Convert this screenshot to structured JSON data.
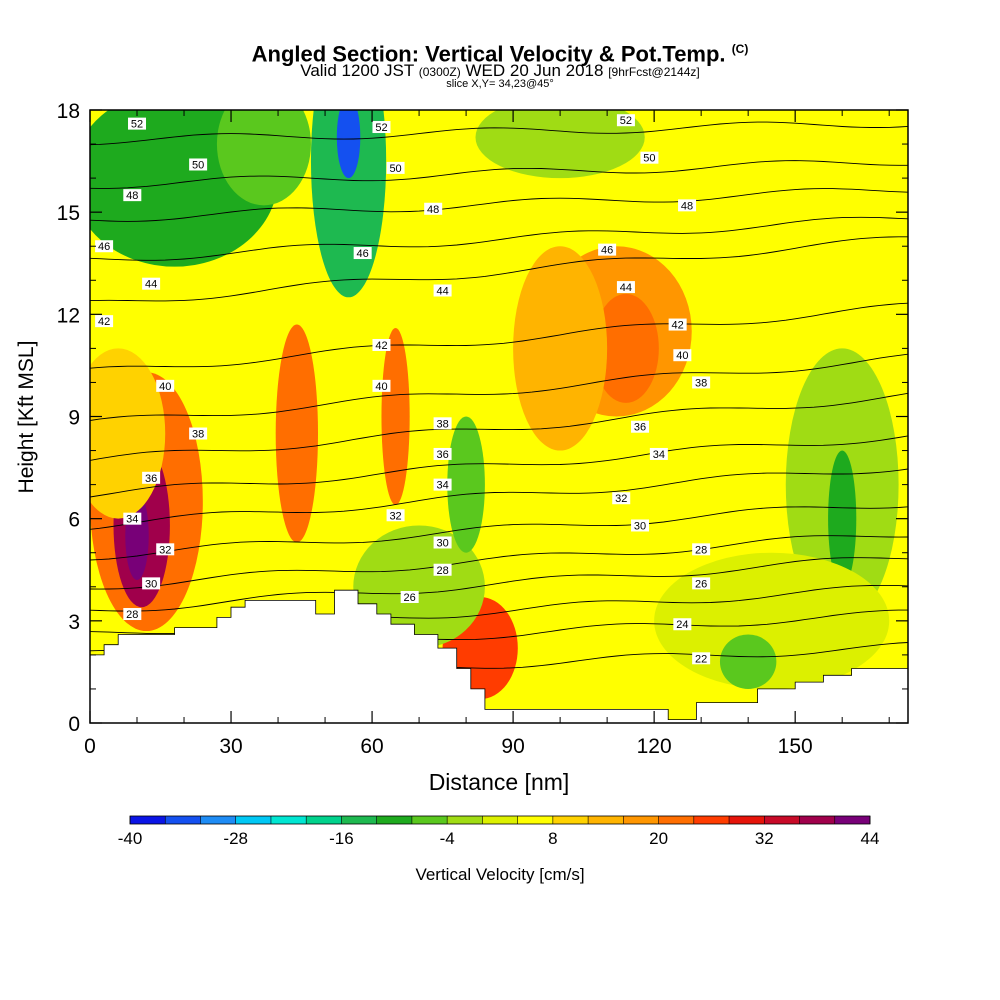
{
  "title": "Angled Section: Vertical Velocity & Pot.Temp.",
  "title_units": "(C)",
  "subtitle": {
    "valid": "Valid 1200 JST",
    "utc": "(0300Z)",
    "date": "WED 20 Jun 2018",
    "forecast": "[9hrFcst@2144z]"
  },
  "slice_label": "slice X,Y= 34,23@45°",
  "colorbar": {
    "label": "Vertical Velocity [cm/s]",
    "tick_labels": [
      "-40",
      "-28",
      "-16",
      "-4",
      "8",
      "20",
      "32",
      "44"
    ],
    "levels": [
      -40,
      -36,
      -32,
      -28,
      -24,
      -20,
      -16,
      -12,
      -8,
      -4,
      0,
      4,
      8,
      12,
      16,
      20,
      24,
      28,
      32,
      36,
      40,
      44
    ],
    "colors": [
      "#0a14e6",
      "#1450f0",
      "#1e8cf5",
      "#00c8f5",
      "#00e6d2",
      "#00d28c",
      "#1eb950",
      "#1eaa1e",
      "#5ac81e",
      "#a0dc14",
      "#dcf000",
      "#ffff00",
      "#ffd200",
      "#ffb400",
      "#ff9600",
      "#ff6e00",
      "#ff3c00",
      "#e6140a",
      "#c80a28",
      "#a0004b",
      "#780078"
    ]
  },
  "chart_data": {
    "type": "heatmap",
    "title": "Angled Section: Vertical Velocity & Pot.Temp.",
    "xlabel": "Distance [nm]",
    "ylabel": "Height [Kft MSL]",
    "xlim": [
      0,
      174
    ],
    "ylim": [
      0,
      18
    ],
    "x_ticks": [
      "0",
      "30",
      "60",
      "90",
      "120",
      "150"
    ],
    "x_tick_values": [
      0,
      30,
      60,
      90,
      120,
      150
    ],
    "y_ticks": [
      "0",
      "3",
      "6",
      "9",
      "12",
      "15",
      "18"
    ],
    "y_tick_values": [
      0,
      3,
      6,
      9,
      12,
      15,
      18
    ],
    "background_level": 4,
    "velocity_features": [
      {
        "x": 12,
        "y": 6.5,
        "rx": 12,
        "ry": 3.8,
        "value": 22
      },
      {
        "x": 11,
        "y": 5.8,
        "rx": 6,
        "ry": 2.4,
        "value": 36
      },
      {
        "x": 10,
        "y": 5.5,
        "rx": 2.5,
        "ry": 1.3,
        "value": 44
      },
      {
        "x": 6,
        "y": 8.5,
        "rx": 10,
        "ry": 2.5,
        "value": 10
      },
      {
        "x": 44,
        "y": 8.5,
        "rx": 4.5,
        "ry": 3.2,
        "value": 20
      },
      {
        "x": 65,
        "y": 9,
        "rx": 3,
        "ry": 2.6,
        "value": 22
      },
      {
        "x": 83,
        "y": 2.2,
        "rx": 8,
        "ry": 1.5,
        "value": 26
      },
      {
        "x": 112,
        "y": 11.5,
        "rx": 16,
        "ry": 2.5,
        "value": 16
      },
      {
        "x": 114,
        "y": 11,
        "rx": 7,
        "ry": 1.6,
        "value": 22
      },
      {
        "x": 100,
        "y": 11,
        "rx": 10,
        "ry": 3,
        "value": 12
      },
      {
        "x": 18,
        "y": 16,
        "rx": 22,
        "ry": 2.6,
        "value": -10
      },
      {
        "x": 55,
        "y": 16.5,
        "rx": 8,
        "ry": 4,
        "value": -14
      },
      {
        "x": 55,
        "y": 17.2,
        "rx": 2.5,
        "ry": 1.2,
        "value": -34
      },
      {
        "x": 37,
        "y": 17,
        "rx": 10,
        "ry": 1.8,
        "value": -8
      },
      {
        "x": 100,
        "y": 17.2,
        "rx": 18,
        "ry": 1.2,
        "value": -2
      },
      {
        "x": 160,
        "y": 7,
        "rx": 12,
        "ry": 4,
        "value": -4
      },
      {
        "x": 160,
        "y": 6,
        "rx": 3,
        "ry": 2,
        "value": -10
      },
      {
        "x": 70,
        "y": 4,
        "rx": 14,
        "ry": 1.8,
        "value": -2
      },
      {
        "x": 145,
        "y": 3,
        "rx": 25,
        "ry": 2,
        "value": 0
      },
      {
        "x": 140,
        "y": 1.8,
        "rx": 6,
        "ry": 0.8,
        "value": -6
      },
      {
        "x": 80,
        "y": 7,
        "rx": 4,
        "ry": 2,
        "value": -6
      }
    ],
    "theta_contours": [
      {
        "level": 22,
        "y0": 1.2,
        "slope": 0.006
      },
      {
        "level": 24,
        "y0": 2.0,
        "slope": 0.007
      },
      {
        "level": 26,
        "y0": 2.6,
        "slope": 0.008
      },
      {
        "level": 28,
        "y0": 3.3,
        "slope": 0.009
      },
      {
        "level": 30,
        "y0": 4.0,
        "slope": 0.009
      },
      {
        "level": 32,
        "y0": 4.9,
        "slope": 0.009
      },
      {
        "level": 34,
        "y0": 5.8,
        "slope": 0.01
      },
      {
        "level": 36,
        "y0": 6.7,
        "slope": 0.01
      },
      {
        "level": 38,
        "y0": 7.7,
        "slope": 0.011
      },
      {
        "level": 40,
        "y0": 8.8,
        "slope": 0.011
      },
      {
        "level": 42,
        "y0": 10.3,
        "slope": 0.011
      },
      {
        "level": 44,
        "y0": 12.3,
        "slope": 0.011
      },
      {
        "level": 46,
        "y0": 13.6,
        "slope": 0.007
      },
      {
        "level": 48,
        "y0": 14.8,
        "slope": 0.005
      },
      {
        "level": 50,
        "y0": 15.8,
        "slope": 0.004
      },
      {
        "level": 52,
        "y0": 17.1,
        "slope": 0.003
      }
    ],
    "contour_labels": [
      {
        "text": "52",
        "x": 10,
        "y": 17.6
      },
      {
        "text": "52",
        "x": 62,
        "y": 17.5
      },
      {
        "text": "52",
        "x": 114,
        "y": 17.7
      },
      {
        "text": "50",
        "x": 23,
        "y": 16.4
      },
      {
        "text": "50",
        "x": 65,
        "y": 16.3
      },
      {
        "text": "50",
        "x": 119,
        "y": 16.6
      },
      {
        "text": "48",
        "x": 9,
        "y": 15.5
      },
      {
        "text": "48",
        "x": 73,
        "y": 15.1
      },
      {
        "text": "48",
        "x": 127,
        "y": 15.2
      },
      {
        "text": "46",
        "x": 3,
        "y": 14.0
      },
      {
        "text": "46",
        "x": 58,
        "y": 13.8
      },
      {
        "text": "46",
        "x": 110,
        "y": 13.9
      },
      {
        "text": "44",
        "x": 13,
        "y": 12.9
      },
      {
        "text": "44",
        "x": 75,
        "y": 12.7
      },
      {
        "text": "44",
        "x": 114,
        "y": 12.8
      },
      {
        "text": "42",
        "x": 3,
        "y": 11.8
      },
      {
        "text": "42",
        "x": 62,
        "y": 11.1
      },
      {
        "text": "42",
        "x": 125,
        "y": 11.7
      },
      {
        "text": "40",
        "x": 16,
        "y": 9.9
      },
      {
        "text": "40",
        "x": 62,
        "y": 9.9
      },
      {
        "text": "40",
        "x": 126,
        "y": 10.8
      },
      {
        "text": "38",
        "x": 23,
        "y": 8.5
      },
      {
        "text": "38",
        "x": 75,
        "y": 8.8
      },
      {
        "text": "38",
        "x": 130,
        "y": 10.0
      },
      {
        "text": "36",
        "x": 13,
        "y": 7.2
      },
      {
        "text": "36",
        "x": 75,
        "y": 7.9
      },
      {
        "text": "36",
        "x": 117,
        "y": 8.7
      },
      {
        "text": "34",
        "x": 9,
        "y": 6.0
      },
      {
        "text": "34",
        "x": 75,
        "y": 7.0
      },
      {
        "text": "34",
        "x": 121,
        "y": 7.9
      },
      {
        "text": "32",
        "x": 16,
        "y": 5.1
      },
      {
        "text": "32",
        "x": 65,
        "y": 6.1
      },
      {
        "text": "32",
        "x": 113,
        "y": 6.6
      },
      {
        "text": "30",
        "x": 13,
        "y": 4.1
      },
      {
        "text": "30",
        "x": 75,
        "y": 5.3
      },
      {
        "text": "30",
        "x": 117,
        "y": 5.8
      },
      {
        "text": "28",
        "x": 9,
        "y": 3.2
      },
      {
        "text": "28",
        "x": 75,
        "y": 4.5
      },
      {
        "text": "28",
        "x": 130,
        "y": 5.1
      },
      {
        "text": "26",
        "x": 68,
        "y": 3.7
      },
      {
        "text": "26",
        "x": 130,
        "y": 4.1
      },
      {
        "text": "24",
        "x": 126,
        "y": 2.9
      },
      {
        "text": "22",
        "x": 130,
        "y": 1.9
      }
    ],
    "terrain_height": [
      [
        0,
        2.0
      ],
      [
        3,
        2.0
      ],
      [
        3,
        2.3
      ],
      [
        6,
        2.3
      ],
      [
        6,
        2.6
      ],
      [
        18,
        2.6
      ],
      [
        18,
        2.8
      ],
      [
        27,
        2.8
      ],
      [
        27,
        3.1
      ],
      [
        30,
        3.1
      ],
      [
        30,
        3.4
      ],
      [
        33,
        3.4
      ],
      [
        33,
        3.6
      ],
      [
        48,
        3.6
      ],
      [
        48,
        3.2
      ],
      [
        52,
        3.2
      ],
      [
        52,
        3.9
      ],
      [
        57,
        3.9
      ],
      [
        57,
        3.5
      ],
      [
        61,
        3.5
      ],
      [
        61,
        3.2
      ],
      [
        64,
        3.2
      ],
      [
        64,
        2.9
      ],
      [
        69,
        2.9
      ],
      [
        69,
        2.6
      ],
      [
        74,
        2.6
      ],
      [
        74,
        2.2
      ],
      [
        78,
        2.2
      ],
      [
        78,
        1.6
      ],
      [
        81,
        1.6
      ],
      [
        81,
        1.0
      ],
      [
        84,
        1.0
      ],
      [
        84,
        0.4
      ],
      [
        123,
        0.4
      ],
      [
        123,
        0.1
      ],
      [
        129,
        0.1
      ],
      [
        129,
        0.6
      ],
      [
        142,
        0.6
      ],
      [
        142,
        1.0
      ],
      [
        150,
        1.0
      ],
      [
        150,
        1.2
      ],
      [
        156,
        1.2
      ],
      [
        156,
        1.4
      ],
      [
        162,
        1.4
      ],
      [
        162,
        1.6
      ],
      [
        174,
        1.6
      ]
    ]
  }
}
